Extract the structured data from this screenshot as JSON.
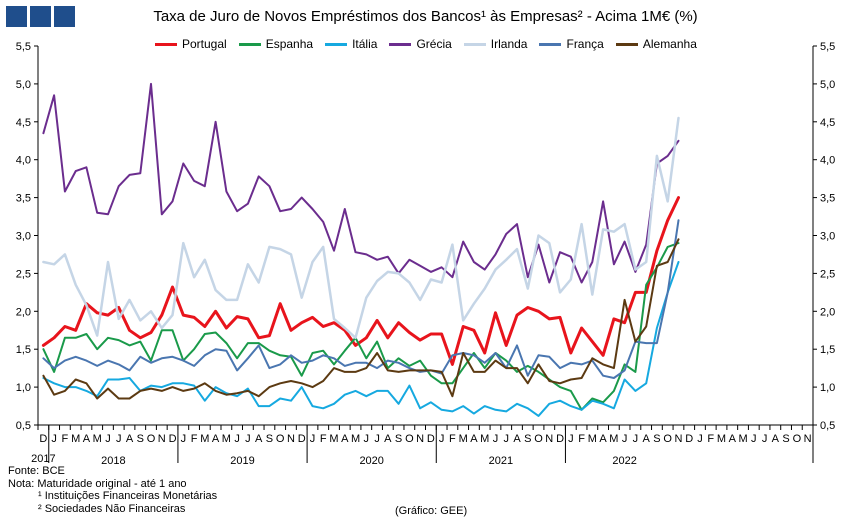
{
  "title": "Taxa de Juro de Novos Empréstimos dos Bancos¹ às Empresas² - Acima 1M€ (%)",
  "notes": {
    "source": "Fonte: BCE",
    "note": "Nota: Maturidade original - até 1 ano",
    "footnote1": "¹ Instituições Financeiras Monetárias",
    "footnote2": "² Sociedades Não Financeiras",
    "credit": "(Gráfico: GEE)"
  },
  "chart_data": {
    "type": "line",
    "ylim": [
      0.5,
      5.5
    ],
    "yticks": [
      "0,5",
      "1,0",
      "1,5",
      "2,0",
      "2,5",
      "3,0",
      "3,5",
      "4,0",
      "4,5",
      "5,0",
      "5,5"
    ],
    "month_letters": [
      "D",
      "J",
      "F",
      "M",
      "A",
      "M",
      "J",
      "J",
      "A",
      "S",
      "O",
      "N",
      "D",
      "J",
      "F",
      "M",
      "A",
      "M",
      "J",
      "J",
      "A",
      "S",
      "O",
      "N",
      "D",
      "J",
      "F",
      "M",
      "A",
      "M",
      "J",
      "J",
      "A",
      "S",
      "O",
      "N",
      "D",
      "J",
      "F",
      "M",
      "A",
      "M",
      "J",
      "J",
      "A",
      "S",
      "O",
      "N",
      "D",
      "J",
      "F",
      "M",
      "A",
      "M",
      "J",
      "J",
      "A",
      "S",
      "O",
      "N",
      "D",
      "J",
      "F",
      "M",
      "A",
      "M",
      "J",
      "J",
      "A",
      "S",
      "O",
      "N"
    ],
    "years": [
      {
        "label": "2017",
        "start": 0,
        "end": 0
      },
      {
        "label": "2018",
        "start": 1,
        "end": 12
      },
      {
        "label": "2019",
        "start": 13,
        "end": 24
      },
      {
        "label": "2020",
        "start": 25,
        "end": 36
      },
      {
        "label": "2021",
        "start": 37,
        "end": 48
      },
      {
        "label": "2022",
        "start": 49,
        "end": 59
      }
    ],
    "grid": false,
    "legend_position": "top",
    "series": [
      {
        "name": "Portugal",
        "color": "#e8141c",
        "width": 3,
        "values": [
          1.55,
          1.65,
          1.8,
          1.75,
          2.1,
          1.98,
          1.95,
          2.05,
          1.75,
          1.65,
          1.72,
          1.95,
          2.32,
          1.95,
          1.92,
          1.8,
          2.0,
          1.78,
          1.93,
          1.9,
          1.65,
          1.68,
          2.1,
          1.75,
          1.85,
          1.92,
          1.8,
          1.85,
          1.75,
          1.55,
          1.65,
          1.88,
          1.65,
          1.85,
          1.72,
          1.62,
          1.7,
          1.7,
          1.3,
          1.8,
          1.75,
          1.45,
          1.98,
          1.55,
          1.95,
          2.05,
          2.0,
          1.9,
          1.92,
          1.45,
          1.78,
          1.6,
          1.42,
          1.9,
          1.85,
          2.25,
          2.25,
          2.8,
          3.2,
          3.5
        ]
      },
      {
        "name": "Espanha",
        "color": "#1a9a4a",
        "width": 2,
        "values": [
          1.5,
          1.2,
          1.65,
          1.65,
          1.7,
          1.5,
          1.65,
          1.62,
          1.55,
          1.6,
          1.35,
          1.75,
          1.75,
          1.35,
          1.5,
          1.7,
          1.72,
          1.58,
          1.38,
          1.58,
          1.58,
          1.48,
          1.42,
          1.4,
          1.15,
          1.45,
          1.48,
          1.3,
          1.48,
          1.65,
          1.38,
          1.6,
          1.25,
          1.38,
          1.28,
          1.35,
          1.15,
          1.05,
          1.05,
          1.25,
          1.45,
          1.25,
          1.45,
          1.35,
          1.2,
          1.28,
          1.2,
          1.1,
          1.0,
          0.95,
          0.7,
          0.85,
          0.8,
          0.95,
          1.3,
          1.2,
          2.35,
          2.58,
          2.85,
          2.9
        ]
      },
      {
        "name": "Itália",
        "color": "#16a9e0",
        "width": 2,
        "values": [
          1.12,
          1.05,
          1.0,
          1.0,
          0.95,
          0.88,
          1.1,
          1.1,
          1.12,
          0.95,
          1.02,
          1.0,
          1.05,
          1.05,
          1.02,
          0.82,
          1.0,
          0.92,
          0.88,
          0.98,
          0.75,
          0.75,
          0.85,
          0.82,
          1.0,
          0.75,
          0.72,
          0.78,
          0.9,
          0.95,
          0.88,
          0.95,
          0.95,
          0.78,
          1.02,
          0.72,
          0.8,
          0.7,
          0.68,
          0.75,
          0.65,
          0.75,
          0.7,
          0.68,
          0.78,
          0.72,
          0.62,
          0.78,
          0.82,
          0.75,
          0.7,
          0.82,
          0.78,
          0.72,
          1.1,
          0.95,
          1.05,
          1.78,
          2.25,
          2.65
        ]
      },
      {
        "name": "Grécia",
        "color": "#6b2d8e",
        "width": 2,
        "values": [
          4.35,
          4.85,
          3.58,
          3.85,
          3.9,
          3.3,
          3.28,
          3.65,
          3.8,
          3.82,
          5.0,
          3.28,
          3.45,
          3.95,
          3.72,
          3.65,
          4.5,
          3.58,
          3.32,
          3.42,
          3.78,
          3.65,
          3.32,
          3.35,
          3.5,
          3.35,
          3.18,
          2.8,
          3.35,
          2.78,
          2.75,
          2.68,
          2.72,
          2.5,
          2.68,
          2.6,
          2.52,
          2.58,
          2.45,
          2.92,
          2.65,
          2.55,
          2.75,
          3.02,
          3.15,
          2.45,
          2.88,
          2.38,
          2.78,
          2.72,
          2.38,
          2.65,
          3.45,
          2.62,
          2.92,
          2.52,
          2.88,
          3.95,
          4.05,
          4.25
        ]
      },
      {
        "name": "Irlanda",
        "color": "#c5d5e6",
        "width": 2.5,
        "values": [
          2.65,
          2.62,
          2.75,
          2.35,
          2.08,
          1.68,
          2.65,
          1.9,
          2.15,
          1.88,
          2.0,
          1.78,
          1.95,
          2.9,
          2.45,
          2.68,
          2.28,
          2.15,
          2.15,
          2.62,
          2.38,
          2.85,
          2.82,
          2.75,
          2.18,
          2.65,
          2.85,
          1.9,
          1.78,
          1.65,
          2.18,
          2.4,
          2.52,
          2.5,
          2.38,
          2.15,
          2.42,
          2.38,
          2.88,
          1.88,
          2.1,
          2.3,
          2.55,
          2.68,
          2.82,
          2.3,
          3.0,
          2.9,
          2.25,
          2.42,
          3.15,
          2.22,
          3.08,
          3.05,
          3.15,
          2.55,
          2.65,
          4.05,
          3.45,
          4.55
        ]
      },
      {
        "name": "França",
        "color": "#4a76b0",
        "width": 2,
        "values": [
          1.38,
          1.25,
          1.35,
          1.4,
          1.35,
          1.28,
          1.35,
          1.3,
          1.22,
          1.4,
          1.32,
          1.38,
          1.4,
          1.35,
          1.28,
          1.42,
          1.5,
          1.48,
          1.22,
          1.38,
          1.55,
          1.25,
          1.3,
          1.42,
          1.32,
          1.35,
          1.42,
          1.38,
          1.28,
          1.32,
          1.32,
          1.25,
          1.35,
          1.32,
          1.25,
          1.2,
          1.22,
          1.18,
          1.42,
          1.45,
          1.42,
          1.32,
          1.45,
          1.25,
          1.55,
          1.15,
          1.42,
          1.4,
          1.25,
          1.32,
          1.3,
          1.35,
          1.15,
          1.12,
          1.22,
          1.6,
          1.58,
          1.58,
          2.25,
          3.2
        ]
      },
      {
        "name": "Alemanha",
        "color": "#5c3a12",
        "width": 2,
        "values": [
          1.15,
          0.9,
          0.95,
          1.1,
          1.05,
          0.85,
          0.98,
          0.85,
          0.85,
          0.95,
          0.98,
          0.95,
          1.0,
          0.95,
          0.98,
          1.05,
          0.95,
          0.9,
          0.92,
          0.95,
          0.88,
          1.0,
          1.05,
          1.08,
          1.05,
          1.0,
          1.08,
          1.25,
          1.2,
          1.2,
          1.25,
          1.45,
          1.22,
          1.2,
          1.22,
          1.22,
          1.22,
          1.2,
          0.88,
          1.45,
          1.2,
          1.2,
          1.35,
          1.25,
          1.25,
          1.05,
          1.3,
          1.08,
          1.05,
          1.1,
          1.12,
          1.38,
          1.3,
          1.25,
          2.15,
          1.6,
          1.8,
          2.6,
          2.65,
          2.95
        ]
      }
    ]
  }
}
